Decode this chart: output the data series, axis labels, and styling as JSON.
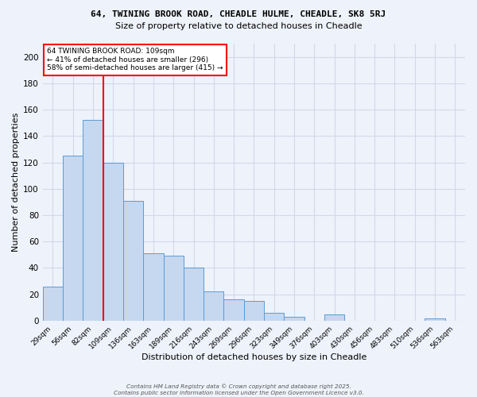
{
  "title1": "64, TWINING BROOK ROAD, CHEADLE HULME, CHEADLE, SK8 5RJ",
  "title2": "Size of property relative to detached houses in Cheadle",
  "xlabel": "Distribution of detached houses by size in Cheadle",
  "ylabel": "Number of detached properties",
  "categories": [
    "29sqm",
    "56sqm",
    "82sqm",
    "109sqm",
    "136sqm",
    "163sqm",
    "189sqm",
    "216sqm",
    "243sqm",
    "269sqm",
    "296sqm",
    "323sqm",
    "349sqm",
    "376sqm",
    "403sqm",
    "430sqm",
    "456sqm",
    "483sqm",
    "510sqm",
    "536sqm",
    "563sqm"
  ],
  "values": [
    26,
    125,
    152,
    120,
    91,
    51,
    49,
    40,
    22,
    16,
    15,
    6,
    3,
    0,
    5,
    0,
    0,
    0,
    0,
    2,
    0
  ],
  "bar_color": "#c5d8f0",
  "bar_edge_color": "#5b9bd5",
  "annotation_text": "64 TWINING BROOK ROAD: 109sqm\n← 41% of detached houses are smaller (296)\n58% of semi-detached houses are larger (415) →",
  "annotation_box_color": "white",
  "annotation_edge_color": "red",
  "grid_color": "#d0d8e8",
  "background_color": "#eef2fa",
  "footer1": "Contains HM Land Registry data © Crown copyright and database right 2025.",
  "footer2": "Contains public sector information licensed under the Open Government Licence v3.0.",
  "ylim": [
    0,
    210
  ],
  "yticks": [
    0,
    20,
    40,
    60,
    80,
    100,
    120,
    140,
    160,
    180,
    200
  ],
  "red_line_index": 2.5
}
